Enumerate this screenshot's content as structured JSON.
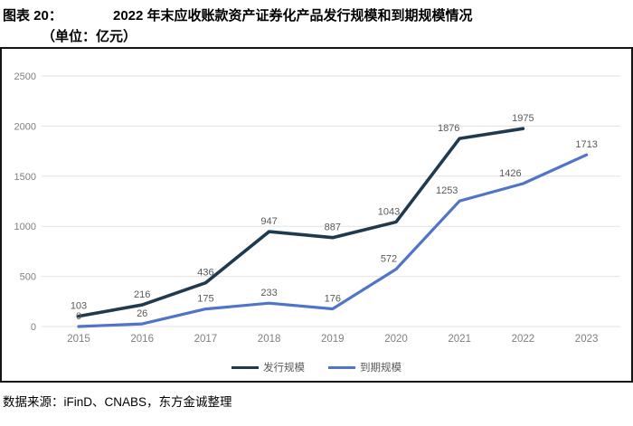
{
  "header": {
    "figure_label": "图表 20：",
    "title": "2022 年末应收账款资产证券化产品发行规模和到期规模情况",
    "unit": "（单位：亿元）"
  },
  "chart_data": {
    "type": "line",
    "title": "2022 年末应收账款资产证券化产品发行规模和到期规模情况（单位：亿元）",
    "categories": [
      "2015",
      "2016",
      "2017",
      "2018",
      "2019",
      "2020",
      "2021",
      "2022",
      "2023"
    ],
    "series": [
      {
        "name": "发行规模",
        "color": "#1f3a4f",
        "values": [
          103,
          216,
          436,
          947,
          887,
          1043,
          1876,
          1975,
          null
        ]
      },
      {
        "name": "到期规模",
        "color": "#4f74c9",
        "values": [
          0,
          26,
          175,
          233,
          176,
          572,
          1253,
          1426,
          1713
        ]
      }
    ],
    "xlabel": "",
    "ylabel": "",
    "ylim": [
      0,
      2500
    ],
    "yticks": [
      0,
      500,
      1000,
      1500,
      2000,
      2500
    ],
    "grid": true,
    "legend_position": "bottom",
    "data_labels": true
  },
  "footer": {
    "source": "数据来源：iFinD、CNABS，东方金诚整理"
  },
  "colors": {
    "issuance_line": "#1f3a4f",
    "maturity_line": "#4f74c9",
    "gridline": "#e2e2e2",
    "tick_text": "#7f7f7f",
    "data_label_text": "#595959",
    "rule": "#141414"
  }
}
